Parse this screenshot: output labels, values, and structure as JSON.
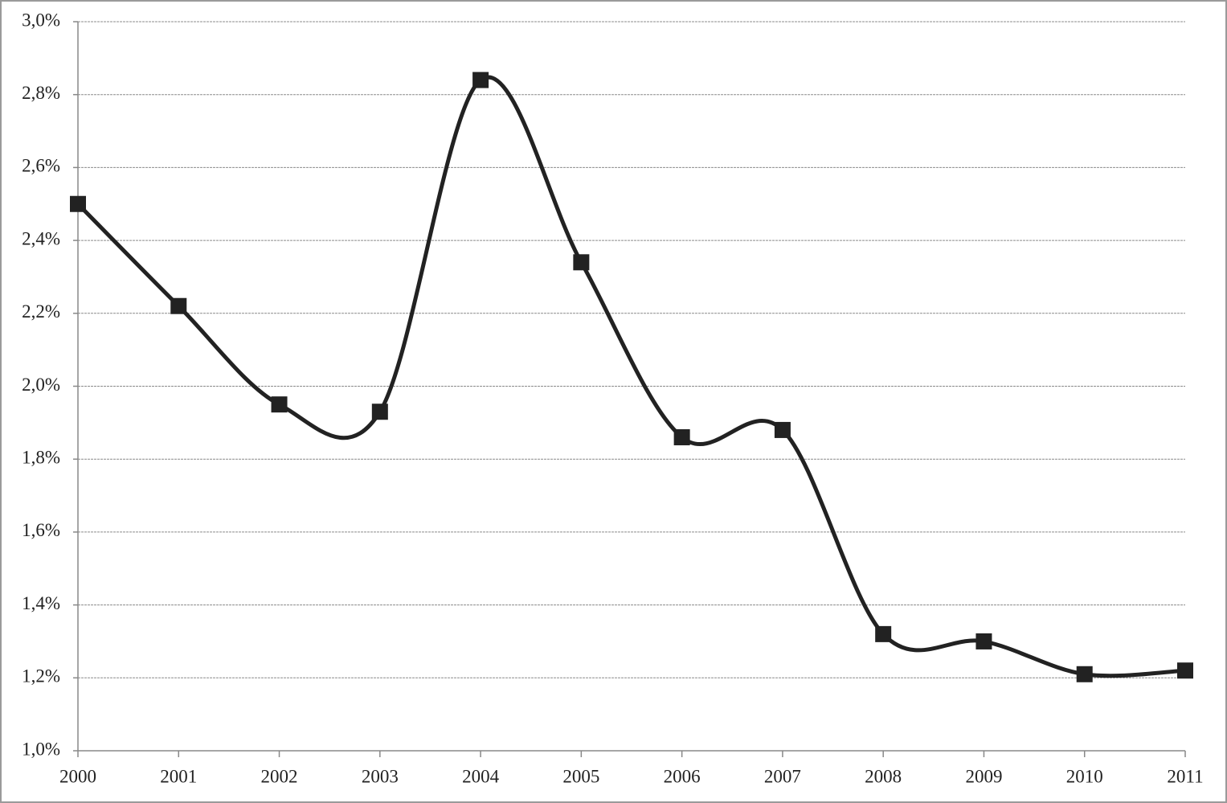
{
  "chart_data": {
    "type": "line",
    "categories": [
      "2000",
      "2001",
      "2002",
      "2003",
      "2004",
      "2005",
      "2006",
      "2007",
      "2008",
      "2009",
      "2010",
      "2011"
    ],
    "values": [
      2.5,
      2.22,
      1.95,
      1.93,
      2.84,
      2.34,
      1.86,
      1.88,
      1.32,
      1.3,
      1.21,
      1.22
    ],
    "color": "#222222",
    "smooth": true,
    "marker": "square",
    "ylim": [
      1.0,
      3.0
    ],
    "yticks": [
      {
        "value": 1.0,
        "label": "1,0%"
      },
      {
        "value": 1.2,
        "label": "1,2%"
      },
      {
        "value": 1.4,
        "label": "1,4%"
      },
      {
        "value": 1.6,
        "label": "1,6%"
      },
      {
        "value": 1.8,
        "label": "1,8%"
      },
      {
        "value": 2.0,
        "label": "2,0%"
      },
      {
        "value": 2.2,
        "label": "2,2%"
      },
      {
        "value": 2.4,
        "label": "2,4%"
      },
      {
        "value": 2.6,
        "label": "2,6%"
      },
      {
        "value": 2.8,
        "label": "2,8%"
      },
      {
        "value": 3.0,
        "label": "3,0%"
      }
    ],
    "grid": true
  }
}
